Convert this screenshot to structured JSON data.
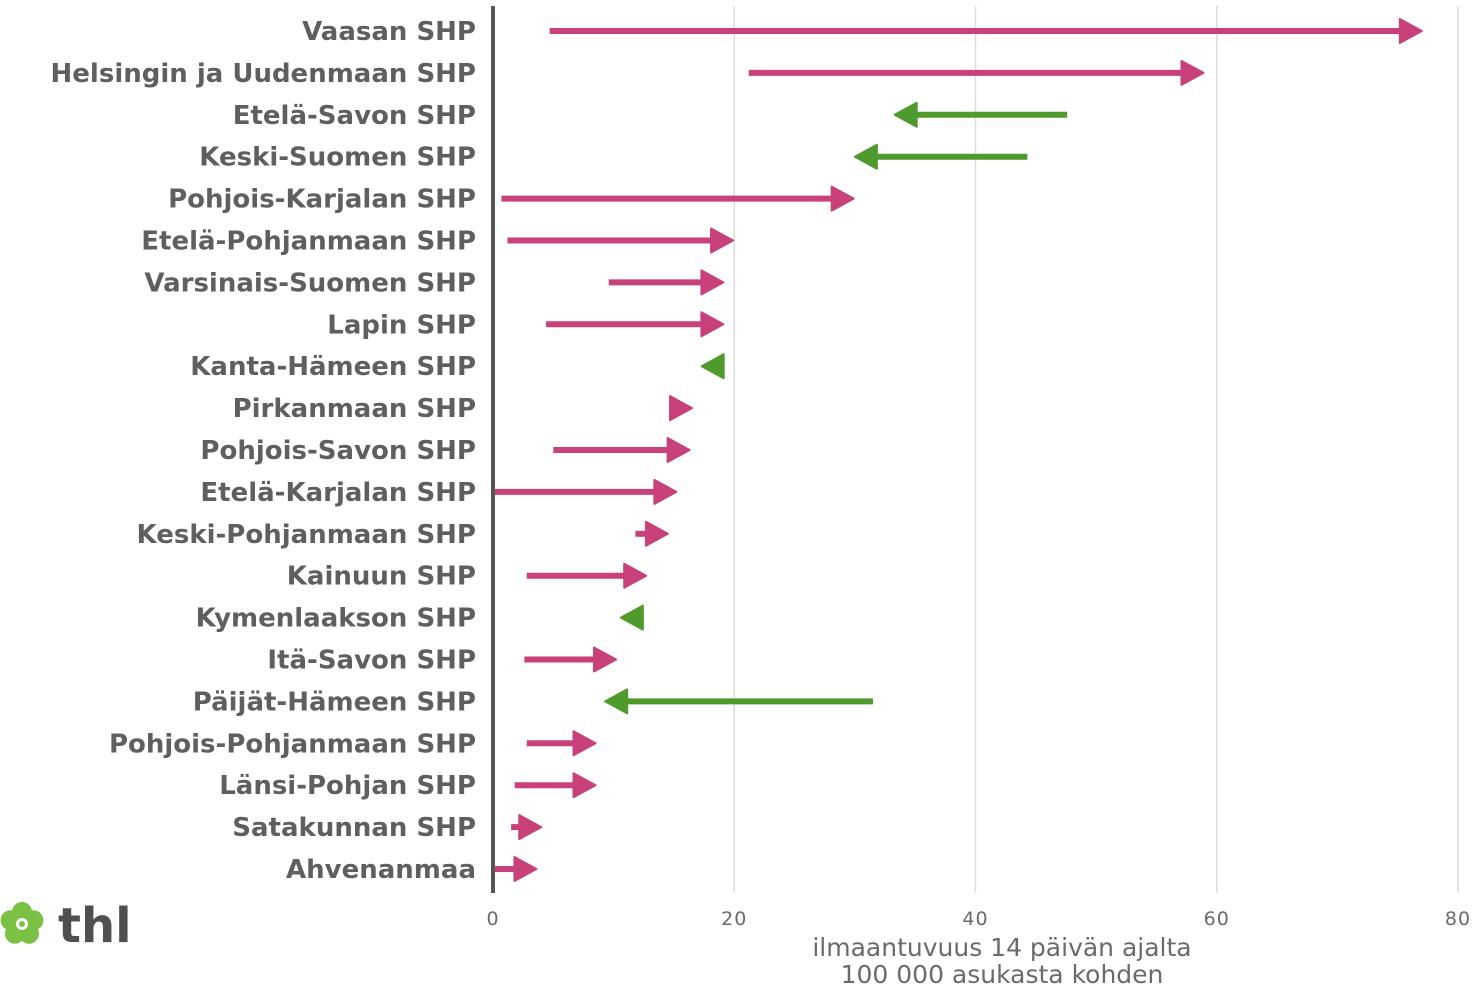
{
  "colors": {
    "increase": "#c8417a",
    "decrease": "#4f9a2c",
    "axis": "#555555",
    "grid": "#dcdcdc",
    "text": "#5f5f5f"
  },
  "logo": {
    "text": "thl",
    "icon": "flower-icon",
    "icon_color": "#7ac143"
  },
  "chart_data": {
    "type": "arrow",
    "title": "",
    "xlabel_lines": [
      "ilmaantuvuus 14 päivän ajalta",
      "100 000 asukasta kohden"
    ],
    "ylabel": "",
    "xlim": [
      0,
      80
    ],
    "xticks": [
      0,
      20,
      40,
      60,
      80
    ],
    "grid": true,
    "series": [
      {
        "category": "Vaasan SHP",
        "from": 4.7,
        "to": 77.0
      },
      {
        "category": "Helsingin ja Uudenmaan SHP",
        "from": 21.2,
        "to": 58.9
      },
      {
        "category": "Etelä-Savon SHP",
        "from": 47.6,
        "to": 33.3
      },
      {
        "category": "Keski-Suomen SHP",
        "from": 44.3,
        "to": 30.0
      },
      {
        "category": "Pohjois-Karjalan SHP",
        "from": 0.7,
        "to": 29.9
      },
      {
        "category": "Etelä-Pohjanmaan SHP",
        "from": 1.2,
        "to": 19.9
      },
      {
        "category": "Varsinais-Suomen SHP",
        "from": 9.6,
        "to": 19.1
      },
      {
        "category": "Lapin SHP",
        "from": 4.4,
        "to": 19.1
      },
      {
        "category": "Kanta-Hämeen SHP",
        "from": 19.1,
        "to": 17.3
      },
      {
        "category": "Pirkanmaan SHP",
        "from": 14.6,
        "to": 16.5
      },
      {
        "category": "Pohjois-Savon SHP",
        "from": 5.0,
        "to": 16.3
      },
      {
        "category": "Etelä-Karjalan SHP",
        "from": 0.0,
        "to": 15.2
      },
      {
        "category": "Keski-Pohjanmaan SHP",
        "from": 11.8,
        "to": 14.5
      },
      {
        "category": "Kainuun SHP",
        "from": 2.8,
        "to": 12.7
      },
      {
        "category": "Kymenlaakson SHP",
        "from": 12.5,
        "to": 10.6
      },
      {
        "category": "Itä-Savon SHP",
        "from": 2.6,
        "to": 10.2
      },
      {
        "category": "Päijät-Hämeen SHP",
        "from": 31.5,
        "to": 9.3
      },
      {
        "category": "Pohjois-Pohjanmaan SHP",
        "from": 2.8,
        "to": 8.5
      },
      {
        "category": "Länsi-Pohjan SHP",
        "from": 1.8,
        "to": 8.5
      },
      {
        "category": "Satakunnan SHP",
        "from": 1.5,
        "to": 4.0
      },
      {
        "category": "Ahvenanmaa",
        "from": 0.0,
        "to": 3.6
      }
    ]
  }
}
